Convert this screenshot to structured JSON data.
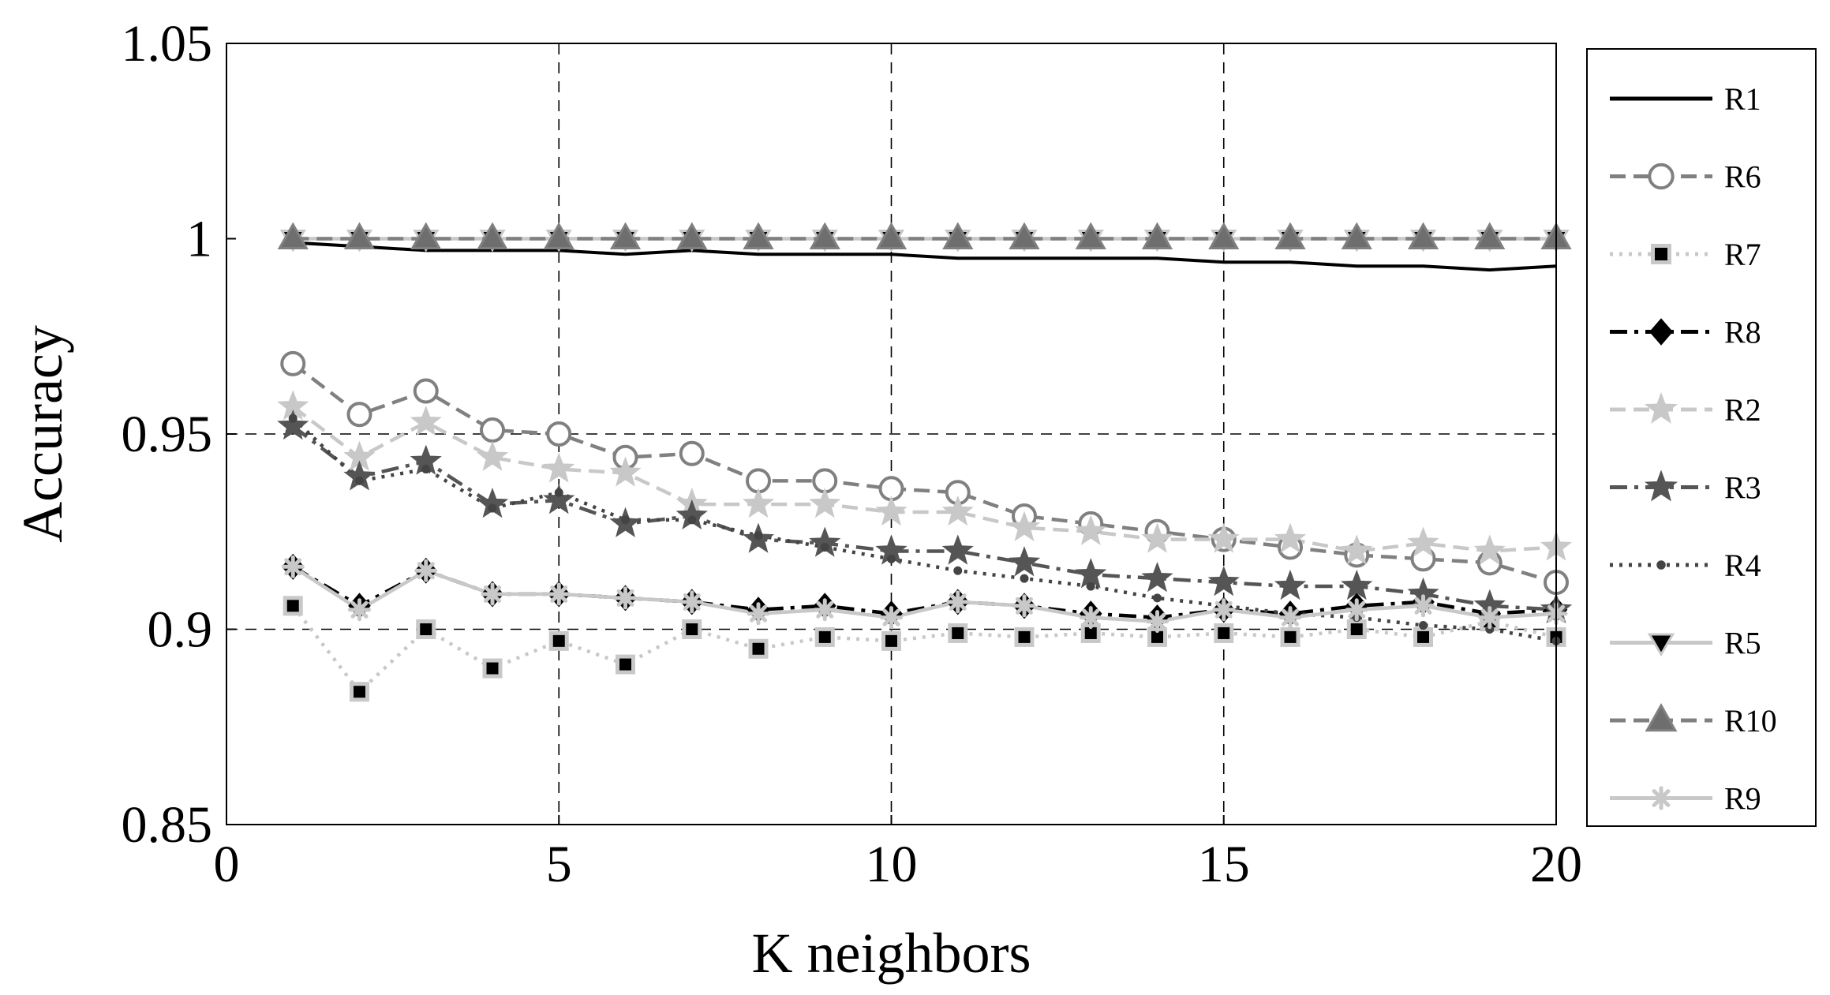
{
  "chart_data": {
    "type": "line",
    "title": "",
    "xlabel": "K neighbors",
    "ylabel": "Accuracy",
    "xlim": [
      0,
      20
    ],
    "ylim": [
      0.85,
      1.05
    ],
    "xticks": [
      0,
      5,
      10,
      15,
      20
    ],
    "yticks": [
      0.85,
      0.9,
      0.95,
      1,
      1.05
    ],
    "xtick_labels": [
      "0",
      "5",
      "10",
      "15",
      "20"
    ],
    "ytick_labels": [
      "0.85",
      "0.9",
      "0.95",
      "1",
      "1.05"
    ],
    "grid": "dashed at x = 5, 10, 15 and y = 0.9, 0.95",
    "legend_position": "outside-right",
    "x": [
      1,
      2,
      3,
      4,
      5,
      6,
      7,
      8,
      9,
      10,
      11,
      12,
      13,
      14,
      15,
      16,
      17,
      18,
      19,
      20
    ],
    "series": [
      {
        "name": "R1",
        "color": "#000000",
        "dash": "solid",
        "marker": "none",
        "values": [
          0.999,
          0.998,
          0.997,
          0.997,
          0.997,
          0.996,
          0.997,
          0.996,
          0.996,
          0.996,
          0.995,
          0.995,
          0.995,
          0.995,
          0.994,
          0.994,
          0.993,
          0.993,
          0.992,
          0.993
        ]
      },
      {
        "name": "R6",
        "color": "#808080",
        "dash": "dashed",
        "marker": "circle",
        "values": [
          0.968,
          0.955,
          0.961,
          0.951,
          0.95,
          0.944,
          0.945,
          0.938,
          0.938,
          0.936,
          0.935,
          0.929,
          0.927,
          0.925,
          0.923,
          0.921,
          0.919,
          0.918,
          0.917,
          0.912
        ]
      },
      {
        "name": "R7",
        "color": "#c8c8c8",
        "dash": "dotted",
        "marker": "square",
        "values": [
          0.906,
          0.884,
          0.9,
          0.89,
          0.897,
          0.891,
          0.9,
          0.895,
          0.898,
          0.897,
          0.899,
          0.898,
          0.899,
          0.898,
          0.899,
          0.898,
          0.9,
          0.898,
          0.902,
          0.898
        ]
      },
      {
        "name": "R8",
        "color": "#000000",
        "dash": "dashdot",
        "marker": "diamond",
        "values": [
          0.916,
          0.906,
          0.915,
          0.909,
          0.909,
          0.908,
          0.907,
          0.905,
          0.906,
          0.904,
          0.907,
          0.906,
          0.904,
          0.903,
          0.905,
          0.904,
          0.906,
          0.907,
          0.904,
          0.905
        ]
      },
      {
        "name": "R2",
        "color": "#c8c8c8",
        "dash": "dashed",
        "marker": "star",
        "values": [
          0.957,
          0.944,
          0.953,
          0.944,
          0.941,
          0.94,
          0.932,
          0.932,
          0.932,
          0.93,
          0.93,
          0.926,
          0.925,
          0.923,
          0.923,
          0.923,
          0.92,
          0.922,
          0.92,
          0.921
        ]
      },
      {
        "name": "R3",
        "color": "#555555",
        "dash": "dashdot",
        "marker": "star",
        "values": [
          0.952,
          0.939,
          0.943,
          0.932,
          0.933,
          0.927,
          0.929,
          0.923,
          0.922,
          0.92,
          0.92,
          0.917,
          0.914,
          0.913,
          0.912,
          0.911,
          0.911,
          0.909,
          0.906,
          0.905
        ]
      },
      {
        "name": "R4",
        "color": "#444444",
        "dash": "dotted",
        "marker": "dot",
        "values": [
          0.954,
          0.938,
          0.941,
          0.931,
          0.935,
          0.928,
          0.928,
          0.924,
          0.921,
          0.918,
          0.915,
          0.913,
          0.911,
          0.908,
          0.906,
          0.904,
          0.903,
          0.901,
          0.9,
          0.897
        ]
      },
      {
        "name": "R5",
        "color": "#c8c8c8",
        "dash": "solid",
        "marker": "triangle-down",
        "values": [
          1.0,
          1.0,
          1.0,
          1.0,
          1.0,
          1.0,
          1.0,
          1.0,
          1.0,
          1.0,
          1.0,
          1.0,
          1.0,
          1.0,
          1.0,
          1.0,
          1.0,
          1.0,
          1.0,
          1.0
        ]
      },
      {
        "name": "R10",
        "color": "#808080",
        "dash": "dashed",
        "marker": "triangle-up",
        "values": [
          1.0,
          1.0,
          1.0,
          1.0,
          1.0,
          1.0,
          1.0,
          1.0,
          1.0,
          1.0,
          1.0,
          1.0,
          1.0,
          1.0,
          1.0,
          1.0,
          1.0,
          1.0,
          1.0,
          1.0
        ]
      },
      {
        "name": "R9",
        "color": "#c8c8c8",
        "dash": "solid",
        "marker": "asterisk",
        "values": [
          0.916,
          0.905,
          0.915,
          0.909,
          0.909,
          0.908,
          0.907,
          0.904,
          0.905,
          0.903,
          0.907,
          0.906,
          0.903,
          0.902,
          0.905,
          0.903,
          0.905,
          0.906,
          0.903,
          0.904
        ]
      }
    ]
  }
}
